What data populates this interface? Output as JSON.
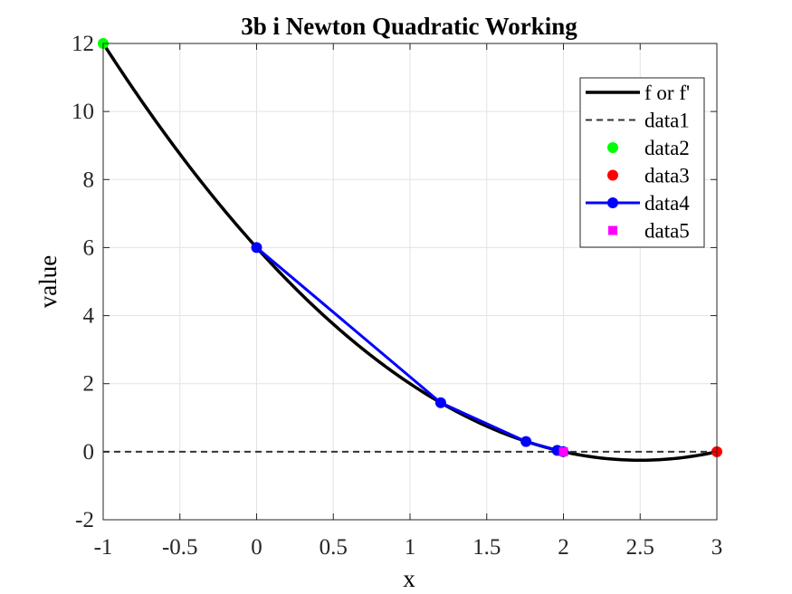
{
  "chart_data": {
    "type": "line",
    "title": "3b i Newton Quadratic Working",
    "xlabel": "x",
    "ylabel": "value",
    "xlim": [
      -1,
      3
    ],
    "ylim": [
      -2,
      12
    ],
    "grid": true,
    "x_ticks": [
      -1,
      -0.5,
      0,
      0.5,
      1,
      1.5,
      2,
      2.5,
      3
    ],
    "y_ticks": [
      -2,
      0,
      2,
      4,
      6,
      8,
      10,
      12
    ],
    "x_tick_labels": [
      "-1",
      "-0.5",
      "0",
      "0.5",
      "1",
      "1.5",
      "2",
      "2.5",
      "3"
    ],
    "y_tick_labels": [
      "-2",
      "0",
      "2",
      "4",
      "6",
      "8",
      "10",
      "12"
    ],
    "legend_position": "top-right",
    "series": [
      {
        "name": "f or f'",
        "style": "solid",
        "color": "#000000",
        "function": "x^2 - 5x + 6",
        "x": [
          -1,
          -0.5,
          0,
          0.5,
          1,
          1.5,
          2,
          2.5,
          3
        ],
        "y": [
          12,
          8.75,
          6,
          3.75,
          2,
          0.75,
          0,
          -0.25,
          0
        ]
      },
      {
        "name": "data1",
        "style": "dashed",
        "color": "#333333",
        "x": [
          -1,
          3
        ],
        "y": [
          0,
          0
        ]
      },
      {
        "name": "data2",
        "style": "marker",
        "marker": "circle",
        "color": "#00ff00",
        "x": [
          -1
        ],
        "y": [
          12
        ]
      },
      {
        "name": "data3",
        "style": "marker",
        "marker": "circle",
        "color": "#ff0000",
        "x": [
          3
        ],
        "y": [
          0
        ]
      },
      {
        "name": "data4",
        "style": "line-marker",
        "marker": "circle",
        "color": "#0000ff",
        "x": [
          0,
          1.2,
          1.756,
          1.959,
          1.998
        ],
        "y": [
          6,
          1.44,
          0.3,
          0.04,
          0.002
        ]
      },
      {
        "name": "data5",
        "style": "marker",
        "marker": "square",
        "color": "#ff00ff",
        "x": [
          2
        ],
        "y": [
          0
        ]
      }
    ]
  }
}
